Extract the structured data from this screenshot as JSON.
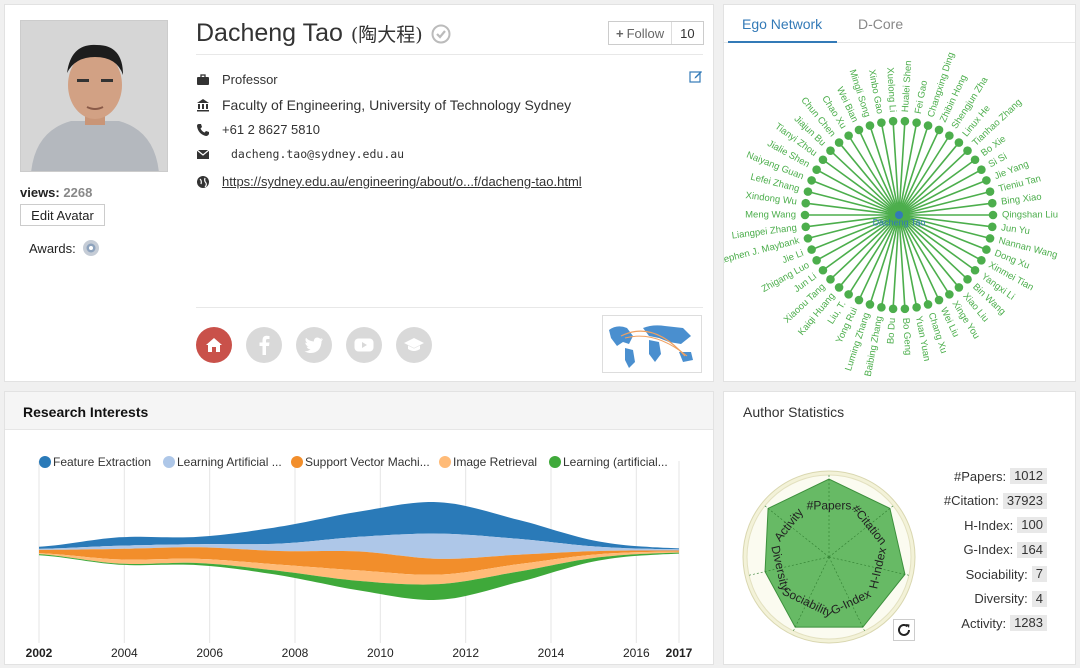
{
  "profile": {
    "name": "Dacheng Tao",
    "name_cn": "(陶大程)",
    "views_label": "views:",
    "views": "2268",
    "edit_avatar_label": "Edit Avatar",
    "awards_label": "Awards:",
    "follow_label": "Follow",
    "follow_count": "10",
    "position": "Professor",
    "affiliation": "Faculty of Engineering, University of Technology Sydney",
    "phone": "+61 2 8627 5810",
    "email": "dacheng.tao@sydney.edu.au",
    "homepage": "https://sydney.edu.au/engineering/about/o...f/dacheng-tao.html",
    "colors": {
      "home": "#c9514a",
      "social_inactive": "#d9d9d9",
      "verified": "#bbbbbb"
    }
  },
  "ego": {
    "tabs": [
      {
        "label": "Ego Network"
      },
      {
        "label": "D-Core"
      }
    ],
    "center": "Dacheng Tao",
    "nodes": [
      "Hualei Shen",
      "Fei Gao",
      "Changxing Ding",
      "Zhibin Hong",
      "Shengjun Zha",
      "Linux He",
      "Tianhao Zhang",
      "Bo Xie",
      "Si Si",
      "Jie Yang",
      "Tieniu Tan",
      "Bing Xiao",
      "Qingshan Liu",
      "Jun Yu",
      "Nannan Wang",
      "Dong Xu",
      "Xinmei Tian",
      "Yangxi Li",
      "Bin Wang",
      "Xiao Liu",
      "Xinge You",
      "Wei Liu",
      "Chang Xu",
      "Yuan Yuan",
      "Bo Geng",
      "Bo Du",
      "Baibing Zhang",
      "Luming Zhang",
      "Yong Rui",
      "Liu, T.",
      "Kaiqi Huang",
      "Xiaoou Tang",
      "Jun Li",
      "Zhigang Luo",
      "Jie Li",
      "Stephen J. Maybank",
      "Liangpei Zhang",
      "Meng Wang",
      "Xindong Wu",
      "Lefei Zhang",
      "Naiyang Guan",
      "Jialie Shen",
      "Tianyi Zhou",
      "Jiajun Bu",
      "Chun Chen",
      "Chao Xu",
      "Wei Bian",
      "Mingli Song",
      "Xinbo Gao",
      "Xuelong Li"
    ],
    "color": "#4cae4c"
  },
  "interests": {
    "title": "Research Interests",
    "legend": [
      {
        "name": "Feature Extraction",
        "color": "#2a7ab8"
      },
      {
        "name": "Learning Artificial ...",
        "color": "#aec7e8"
      },
      {
        "name": "Support Vector Machi...",
        "color": "#f28e2b"
      },
      {
        "name": "Image Retrieval",
        "color": "#ffbb78"
      },
      {
        "name": "Learning (artificial...",
        "color": "#3fa93a"
      }
    ],
    "axis_ticks": [
      "2002",
      "2004",
      "2006",
      "2008",
      "2010",
      "2012",
      "2014",
      "2016",
      "2017"
    ]
  },
  "chart_data": {
    "type": "area",
    "x": [
      2002,
      2004,
      2006,
      2008,
      2010,
      2012,
      2014,
      2016,
      2017
    ],
    "series": [
      {
        "name": "Feature Extraction",
        "values": [
          2,
          8,
          7,
          16,
          24,
          30,
          18,
          5,
          1
        ]
      },
      {
        "name": "Learning Artificial ...",
        "values": [
          1,
          3,
          3,
          7,
          14,
          24,
          15,
          4,
          1
        ]
      },
      {
        "name": "Support Vector Machi...",
        "values": [
          3,
          10,
          11,
          13,
          18,
          15,
          9,
          3,
          1
        ]
      },
      {
        "name": "Image Retrieval",
        "values": [
          1,
          4,
          4,
          6,
          10,
          9,
          7,
          3,
          1
        ]
      },
      {
        "name": "Learning (artificial...",
        "values": [
          1,
          1,
          2,
          4,
          9,
          15,
          10,
          3,
          1
        ]
      }
    ]
  },
  "stats": {
    "title": "Author Statistics",
    "radar_axes": [
      "#Papers",
      "#Citation",
      "H-Index",
      "G-Index",
      "Sociability",
      "Diversity",
      "Activity"
    ],
    "radar_levels": [
      0.95,
      0.95,
      0.95,
      0.95,
      0.95,
      0.8,
      0.95
    ],
    "items": [
      {
        "label": "#Papers:",
        "value": "1012"
      },
      {
        "label": "#Citation:",
        "value": "37923"
      },
      {
        "label": "H-Index:",
        "value": "100"
      },
      {
        "label": "G-Index:",
        "value": "164"
      },
      {
        "label": "Sociability:",
        "value": "7"
      },
      {
        "label": "Diversity:",
        "value": "4"
      },
      {
        "label": "Activity:",
        "value": "1283"
      }
    ],
    "radar_color": "#4cae4c"
  }
}
